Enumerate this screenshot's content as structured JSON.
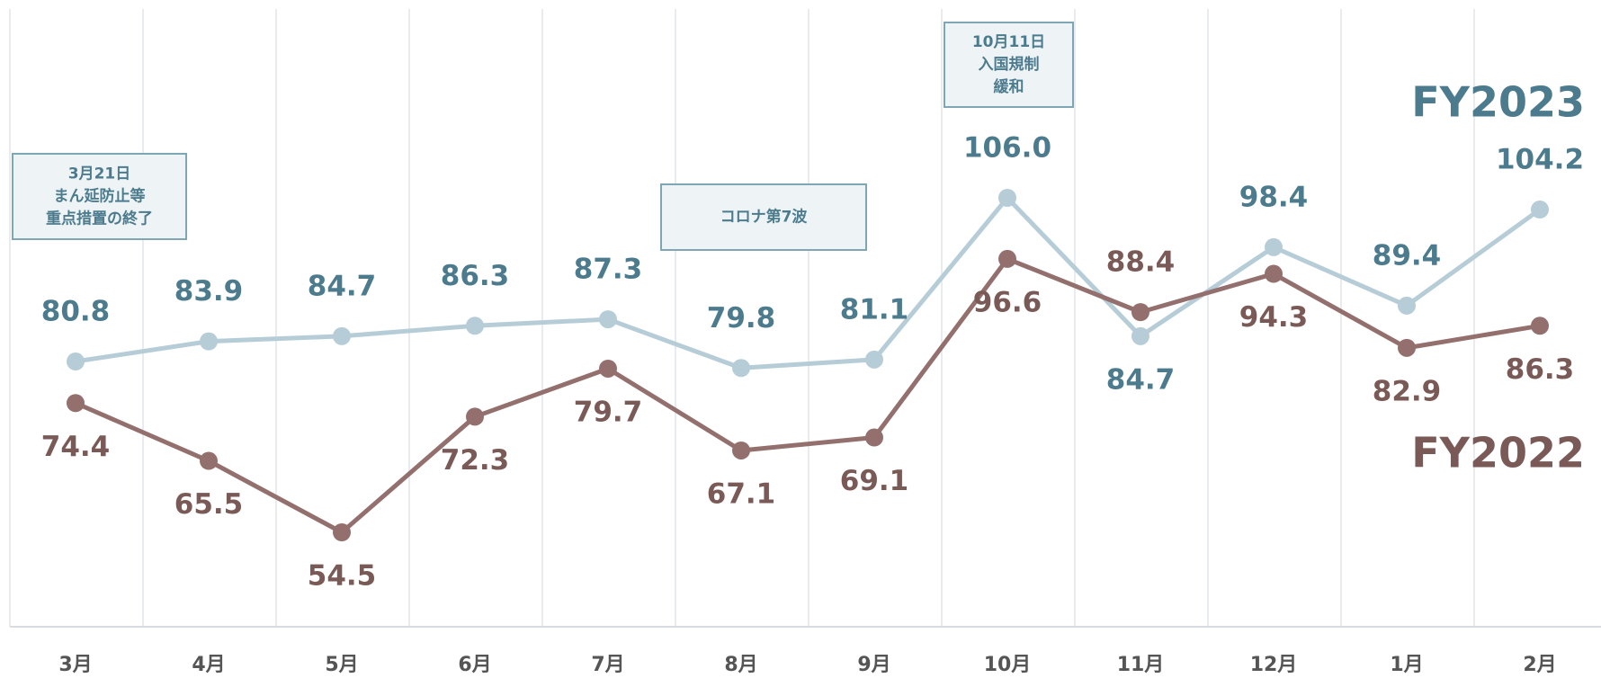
{
  "chart_data": {
    "type": "line",
    "categories": [
      "3月",
      "4月",
      "5月",
      "6月",
      "7月",
      "8月",
      "9月",
      "10月",
      "11月",
      "12月",
      "1月",
      "2月"
    ],
    "series": [
      {
        "name": "FY2023",
        "color": "#b6cdd7",
        "values": [
          80.8,
          83.9,
          84.7,
          86.3,
          87.3,
          79.8,
          81.1,
          106.0,
          84.7,
          98.4,
          89.4,
          104.2
        ],
        "value_labels": [
          "80.8",
          "83.9",
          "84.7",
          "86.3",
          "87.3",
          "79.8",
          "81.1",
          "106.0",
          "84.7",
          "98.4",
          "89.4",
          "104.2"
        ]
      },
      {
        "name": "FY2022",
        "color": "#93706d",
        "values": [
          74.4,
          65.5,
          54.5,
          72.3,
          79.7,
          67.1,
          69.1,
          96.6,
          88.4,
          94.3,
          82.9,
          86.3
        ],
        "value_labels": [
          "74.4",
          "65.5",
          "54.5",
          "72.3",
          "79.7",
          "67.1",
          "69.1",
          "96.6",
          "88.4",
          "94.3",
          "82.9",
          "86.3"
        ]
      }
    ],
    "annotations": [
      [
        "3月21日",
        "まん延防止等",
        "重点措置の終了"
      ],
      [
        "コロナ第7波"
      ],
      [
        "10月11日",
        "入国規制",
        "緩和"
      ]
    ],
    "grid": true
  }
}
